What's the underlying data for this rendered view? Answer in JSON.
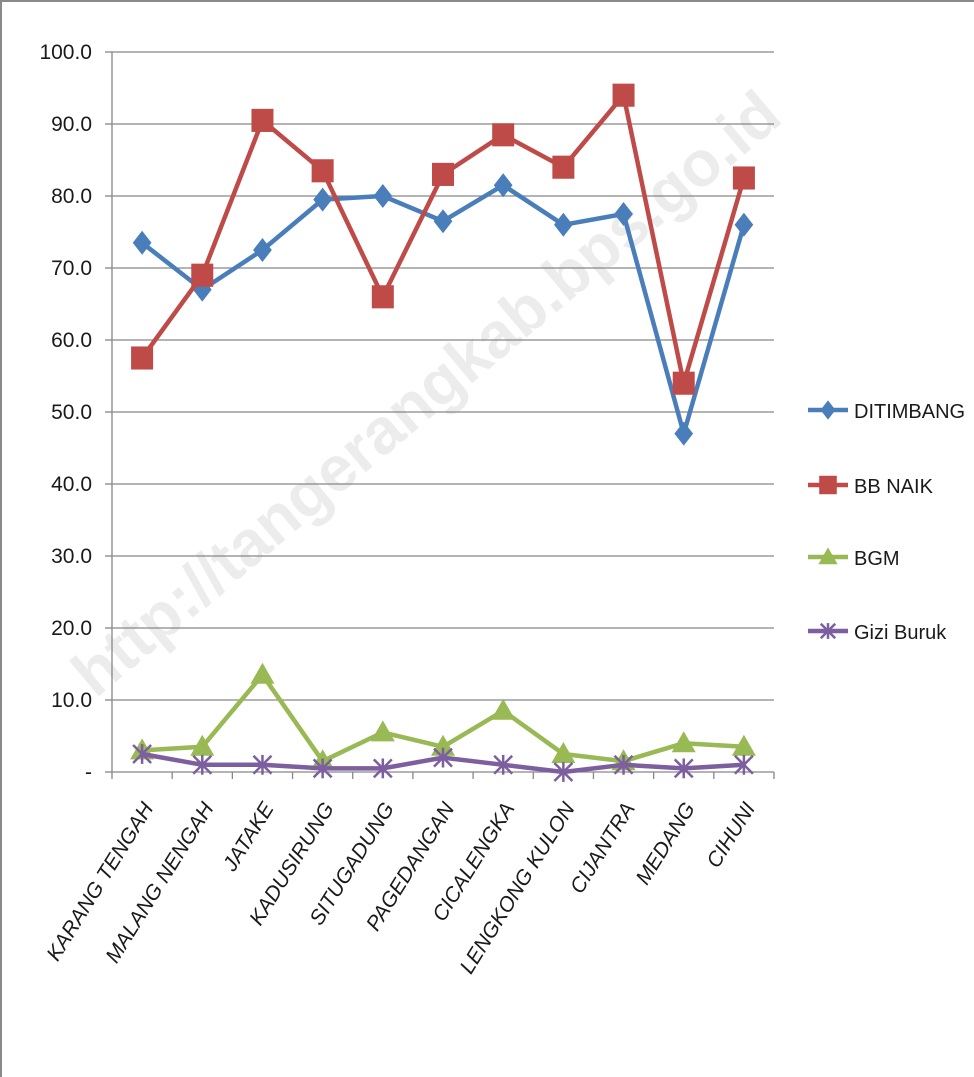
{
  "watermark": "http://tangerangkab.bps.go.id",
  "chart_data": {
    "type": "line",
    "categories": [
      "KARANG TENGAH",
      "MALANG NENGAH",
      "JATAKE",
      "KADUSIRUNG",
      "SITUGADUNG",
      "PAGEDANGAN",
      "CICALENGKA",
      "LENGKONG KULON",
      "CIJANTRA",
      "MEDANG",
      "CIHUNI"
    ],
    "ylim": [
      0,
      100
    ],
    "y_ticks": [
      "-",
      "10.0",
      "20.0",
      "30.0",
      "40.0",
      "50.0",
      "60.0",
      "70.0",
      "80.0",
      "90.0",
      "100.0"
    ],
    "grid": true,
    "legend_position": "right",
    "series": [
      {
        "name": "DITIMBANG",
        "color": "#4a7ebb",
        "marker": "diamond",
        "values": [
          73.5,
          67.0,
          72.5,
          79.5,
          80.0,
          76.5,
          81.5,
          76.0,
          77.5,
          47.0,
          76.0
        ]
      },
      {
        "name": "BB NAIK",
        "color": "#be4b48",
        "marker": "square",
        "values": [
          57.5,
          69.0,
          90.5,
          83.5,
          66.0,
          83.0,
          88.5,
          84.0,
          94.0,
          54.0,
          82.5
        ]
      },
      {
        "name": "BGM",
        "color": "#98b954",
        "marker": "triangle",
        "values": [
          3.0,
          3.5,
          13.5,
          1.5,
          5.5,
          3.5,
          8.5,
          2.5,
          1.5,
          4.0,
          3.5
        ]
      },
      {
        "name": "Gizi Buruk",
        "color": "#7d5fa0",
        "marker": "x",
        "values": [
          2.5,
          1.0,
          1.0,
          0.5,
          0.5,
          2.0,
          1.0,
          0.0,
          1.0,
          0.5,
          1.0
        ]
      }
    ]
  }
}
